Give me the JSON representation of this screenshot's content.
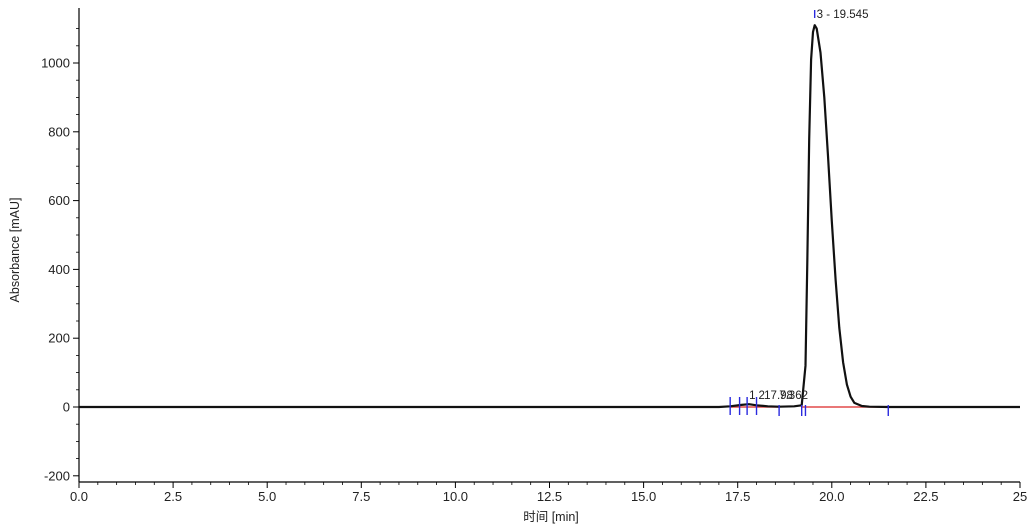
{
  "chart_data": {
    "type": "line",
    "title": "",
    "xlabel": "时间 [min]",
    "ylabel": "Absorbance [mAU]",
    "xlim": [
      0,
      25
    ],
    "ylim": [
      -200,
      1150
    ],
    "x_ticks": [
      0,
      2.5,
      5,
      7.5,
      10,
      12.5,
      15,
      17.5,
      20,
      22.5,
      25
    ],
    "x_tick_labels": [
      "0.0",
      "2.5",
      "5.0",
      "7.5",
      "10.0",
      "12.5",
      "15.0",
      "17.5",
      "20.0",
      "22.5",
      "25"
    ],
    "y_ticks": [
      -200,
      0,
      200,
      400,
      600,
      800,
      1000
    ],
    "y_tick_labels": [
      "-200",
      "0",
      "200",
      "400",
      "600",
      "800",
      "1000"
    ],
    "grid": false,
    "colors": {
      "trace": "#111111",
      "baseline": "#e24a4a",
      "markers": "#2a2adf"
    },
    "series": [
      {
        "x": [
          0,
          17.0,
          17.3,
          17.6,
          17.8,
          18.0,
          18.3,
          18.6,
          19.0,
          19.2,
          19.3,
          19.35,
          19.4,
          19.45,
          19.5,
          19.545,
          19.6,
          19.7,
          19.8,
          19.9,
          20.0,
          20.1,
          20.2,
          20.3,
          20.4,
          20.5,
          20.6,
          20.8,
          21.0,
          21.5,
          22.0,
          25.0
        ],
        "y": [
          0,
          0,
          2,
          6,
          8,
          5,
          2,
          1,
          2,
          5,
          120,
          420,
          780,
          1010,
          1090,
          1110,
          1100,
          1030,
          900,
          730,
          540,
          370,
          230,
          130,
          65,
          30,
          12,
          3,
          1,
          0,
          0,
          0
        ]
      }
    ],
    "baselines": [
      {
        "x": [
          17.3,
          18.6
        ]
      },
      {
        "x": [
          19.2,
          21.5
        ]
      }
    ],
    "markers": [
      {
        "x": 17.3,
        "type": "tall"
      },
      {
        "x": 17.55,
        "type": "tall"
      },
      {
        "x": 17.75,
        "type": "tall"
      },
      {
        "x": 18.0,
        "type": "tall"
      },
      {
        "x": 18.6,
        "type": "small"
      },
      {
        "x": 19.2,
        "type": "small"
      },
      {
        "x": 19.3,
        "type": "small"
      },
      {
        "x": 21.5,
        "type": "small"
      },
      {
        "x": 19.545,
        "type": "top"
      }
    ],
    "annotations": [
      {
        "text": "1",
        "x": 17.75,
        "y": 10
      },
      {
        "text": "2",
        "x": 18.0,
        "y": 10
      },
      {
        "text": "17.98",
        "x": 18.15,
        "y": 10
      },
      {
        "text": "7.362",
        "x": 18.55,
        "y": 10
      },
      {
        "text": "3 - 19.545",
        "x": 19.545,
        "y": 1150
      }
    ]
  }
}
